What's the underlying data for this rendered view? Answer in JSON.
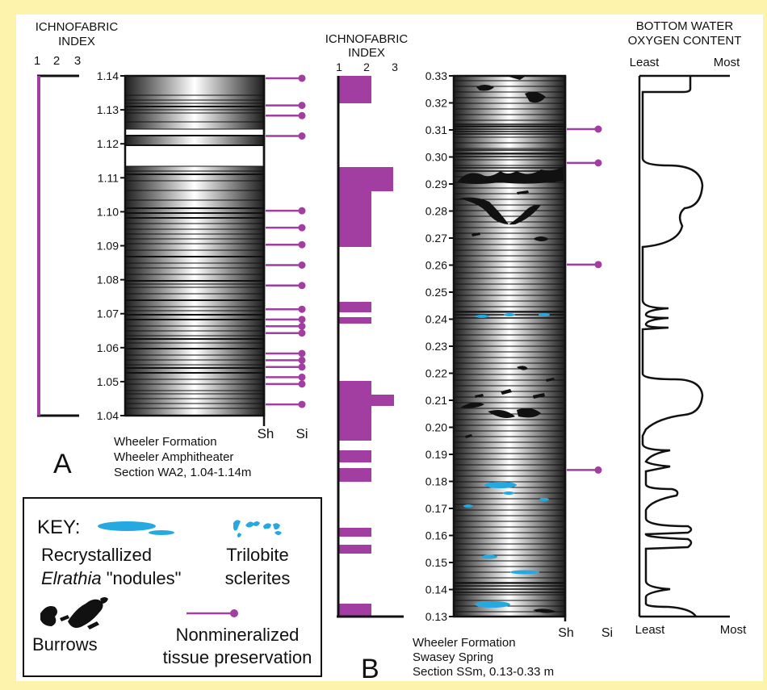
{
  "colors": {
    "background": "#fdf3ad",
    "panel": "#ffffff",
    "purple": "#a23ea1",
    "blue": "#26a8e0",
    "black": "#111111"
  },
  "panel_a": {
    "ichnofabric_title_line1": "ICHNOFABRIC",
    "ichnofabric_title_line2": "INDEX",
    "index_ticks": [
      "1",
      "2",
      "3"
    ],
    "depth_ticks": [
      "1.14",
      "1.13",
      "1.12",
      "1.11",
      "1.10",
      "1.09",
      "1.08",
      "1.07",
      "1.06",
      "1.05",
      "1.04"
    ],
    "depth_top": 1.14,
    "depth_bottom": 1.04,
    "ichnofabric_value": 1,
    "tissue_depths": [
      1.1393,
      1.1313,
      1.1283,
      1.1223,
      1.1003,
      1.0953,
      1.0903,
      1.0843,
      1.0783,
      1.0713,
      1.0683,
      1.0663,
      1.0643,
      1.0583,
      1.0563,
      1.0543,
      1.0513,
      1.0493,
      1.0433
    ],
    "x_labels": [
      "Sh",
      "Si"
    ],
    "letter": "A",
    "caption_line1": "Wheeler Formation",
    "caption_line2": "Wheeler Amphitheater",
    "caption_line3": "Section WA2, 1.04-1.14m"
  },
  "panel_b": {
    "ichnofabric_title_line1": "ICHNOFABRIC",
    "ichnofabric_title_line2": "INDEX",
    "index_ticks": [
      "1",
      "2",
      "3"
    ],
    "depth_ticks": [
      "0.33",
      "0.32",
      "0.31",
      "0.30",
      "0.29",
      "0.28",
      "0.27",
      "0.26",
      "0.25",
      "0.24",
      "0.23",
      "0.22",
      "0.21",
      "0.20",
      "0.19",
      "0.18",
      "0.17",
      "0.16",
      "0.15",
      "0.14",
      "0.13"
    ],
    "depth_top": 0.33,
    "depth_bottom": 0.13,
    "tissue_depths": [
      0.3103,
      0.2978,
      0.2602,
      0.1842
    ],
    "x_labels": [
      "Sh",
      "Si"
    ],
    "letter": "B",
    "caption_line1": "Wheeler Formation",
    "caption_line2": "Swasey Spring",
    "caption_line3": "Section SSm, 0.13-0.33 m"
  },
  "oxygen": {
    "title_line1": "BOTTOM WATER",
    "title_line2": "OXYGEN CONTENT",
    "top_left": "Least",
    "top_right": "Most",
    "bottom_left": "Least",
    "bottom_right": "Most"
  },
  "key": {
    "title": "KEY:",
    "nodules_line1": "Recrystallized",
    "nodules_line2_italic": "Elrathia",
    "nodules_line2_rest": " \"nodules\"",
    "trilobite_line1": "Trilobite",
    "trilobite_line2": "sclerites",
    "burrows": "Burrows",
    "tissue_line1": "Nonmineralized",
    "tissue_line2": "tissue preservation"
  }
}
